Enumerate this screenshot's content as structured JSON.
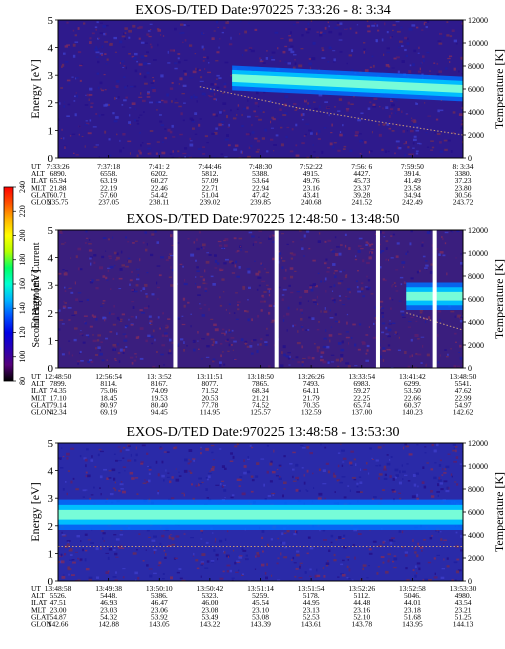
{
  "colors": {
    "background": "#ffffff",
    "frame": "#000000",
    "gap": "#ffffff",
    "profile_line": "#c89a78"
  },
  "colorbar": {
    "label": "Second Harmonic Current",
    "ticks": [
      "80",
      "100",
      "120",
      "140",
      "160",
      "180",
      "200",
      "220",
      "240"
    ],
    "range": [
      80,
      240
    ],
    "colors": [
      "#000000",
      "#55007a",
      "#2a00b4",
      "#0000e6",
      "#0050ff",
      "#00b4ff",
      "#00ffd2",
      "#00ff64",
      "#b4ff00",
      "#ffff00",
      "#ffb400",
      "#ff5000",
      "#ff0000"
    ]
  },
  "chart_data": [
    {
      "type": "heatmap",
      "title": "EXOS-D/TED   Date:970225   7:33:26 - 8: 3:34",
      "ylabel": "Energy [eV]",
      "ylabel_right": "Temperature [K]",
      "ylim": [
        0,
        5
      ],
      "ylim_right": [
        0,
        12000
      ],
      "yticks": [
        "0",
        "1",
        "2",
        "3",
        "4",
        "5"
      ],
      "yticks_right": [
        "0",
        "2000",
        "4000",
        "6000",
        "8000",
        "10000",
        "12000"
      ],
      "background_color": "#2e1a8c",
      "band": {
        "x_start": 0.43,
        "x_end": 1.0,
        "center_ev": [
          2.9,
          2.5
        ],
        "halfwidth_ev": 0.45,
        "peak_color": "#7dffd6",
        "mid_color": "#00c8ff",
        "edge_color": "#0070ff"
      },
      "profile": {
        "x": [
          0.35,
          0.6,
          0.8,
          1.0
        ],
        "t_k": [
          6200,
          4300,
          3100,
          2000
        ]
      },
      "gaps": [],
      "tick_labels": {
        "row_names": [
          "UT",
          "ALT",
          "ILAT",
          "MLT",
          "GLAT",
          "GLON"
        ],
        "columns": [
          [
            "7:33:26",
            "6890.",
            "65.94",
            "21.88",
            "60.71",
            "235.75"
          ],
          [
            "7:37:18",
            "6558.",
            "63.19",
            "22.19",
            "57.60",
            "237.05"
          ],
          [
            "7:41: 2",
            "6202.",
            "60.27",
            "22.46",
            "54.42",
            "238.11"
          ],
          [
            "7:44:46",
            "5812.",
            "57.09",
            "22.71",
            "51.04",
            "239.02"
          ],
          [
            "7:48:30",
            "5388.",
            "53.64",
            "22.94",
            "47.42",
            "239.85"
          ],
          [
            "7:52:22",
            "4915.",
            "49.76",
            "23.16",
            "43.41",
            "240.68"
          ],
          [
            "7:56: 6",
            "4427.",
            "45.73",
            "23.37",
            "39.28",
            "241.52"
          ],
          [
            "7:59:50",
            "3914.",
            "41.49",
            "23.58",
            "34.94",
            "242.49"
          ],
          [
            "8: 3:34",
            "3380.",
            "37.23",
            "23.80",
            "30.56",
            "243.72"
          ]
        ]
      }
    },
    {
      "type": "heatmap",
      "title": "EXOS-D/TED   Date:970225   12:48:50 - 13:48:50",
      "ylabel": "Energy [eV]",
      "ylabel_right": "Temperature [K]",
      "ylim": [
        0,
        5
      ],
      "ylim_right": [
        0,
        12000
      ],
      "yticks": [
        "0",
        "1",
        "2",
        "3",
        "4",
        "5"
      ],
      "yticks_right": [
        "0",
        "2000",
        "4000",
        "6000",
        "8000",
        "10000",
        "12000"
      ],
      "background_color": "#3a1e7e",
      "band": {
        "x_start": 0.86,
        "x_end": 1.0,
        "center_ev": [
          2.6,
          2.6
        ],
        "halfwidth_ev": 0.5,
        "peak_color": "#7dffd6",
        "mid_color": "#00c8ff",
        "edge_color": "#0070ff"
      },
      "profile": {
        "x": [
          0.86,
          1.0
        ],
        "t_k": [
          4800,
          3300
        ]
      },
      "gaps": [
        [
          0.285,
          0.295
        ],
        [
          0.535,
          0.545
        ],
        [
          0.785,
          0.795
        ],
        [
          0.925,
          0.935
        ]
      ],
      "tick_labels": {
        "row_names": [
          "UT",
          "ALT",
          "ILAT",
          "MLT",
          "GLAT",
          "GLON"
        ],
        "columns": [
          [
            "12:48:50",
            "7899.",
            "74.35",
            "17.10",
            "79.14",
            "42.34"
          ],
          [
            "12:56:54",
            "8114.",
            "75.06",
            "18.45",
            "80.97",
            "69.19"
          ],
          [
            "13: 3:52",
            "8167.",
            "74.09",
            "19.53",
            "80.40",
            "94.45"
          ],
          [
            "13:11:51",
            "8077.",
            "71.52",
            "20.53",
            "77.78",
            "114.95"
          ],
          [
            "13:18:50",
            "7865.",
            "68.34",
            "21.21",
            "74.52",
            "125.57"
          ],
          [
            "13:26:26",
            "7493.",
            "64.11",
            "21.79",
            "70.35",
            "132.59"
          ],
          [
            "13:33:54",
            "6983.",
            "59.27",
            "22.25",
            "65.74",
            "137.00"
          ],
          [
            "13:41:42",
            "6299.",
            "53.50",
            "22.66",
            "60.37",
            "140.23"
          ],
          [
            "13:48:50",
            "5541.",
            "47.62",
            "22.99",
            "54.97",
            "142.62"
          ]
        ]
      }
    },
    {
      "type": "heatmap",
      "title": "EXOS-D/TED   Date:970225   13:48:58 - 13:53:30",
      "ylabel": "Energy [eV]",
      "ylabel_right": "Temperature [K]",
      "ylim": [
        0,
        5
      ],
      "ylim_right": [
        0,
        12000
      ],
      "yticks": [
        "0",
        "1",
        "2",
        "3",
        "4",
        "5"
      ],
      "yticks_right": [
        "0",
        "2000",
        "4000",
        "6000",
        "8000",
        "10000",
        "12000"
      ],
      "background_color": "#2a2aa8",
      "band": {
        "x_start": 0.0,
        "x_end": 1.0,
        "center_ev": [
          2.4,
          2.4
        ],
        "halfwidth_ev": 0.55,
        "peak_color": "#7dffd6",
        "mid_color": "#00c8ff",
        "edge_color": "#0070ff"
      },
      "profile": {
        "x": [
          0.0,
          1.0
        ],
        "t_k": [
          3000,
          3000
        ]
      },
      "gaps": [],
      "tick_labels": {
        "row_names": [
          "UT",
          "ALT",
          "ILAT",
          "MLT",
          "GLAT",
          "GLON"
        ],
        "columns": [
          [
            "13:48:58",
            "5526.",
            "47.51",
            "23.00",
            "54.87",
            "142.66"
          ],
          [
            "13:49:38",
            "5448.",
            "46.93",
            "23.03",
            "54.32",
            "142.88"
          ],
          [
            "13:50:10",
            "5386.",
            "46.47",
            "23.06",
            "53.92",
            "143.05"
          ],
          [
            "13:50:42",
            "5323.",
            "46.00",
            "23.08",
            "53.49",
            "143.22"
          ],
          [
            "13:51:14",
            "5259.",
            "45.54",
            "23.10",
            "53.08",
            "143.39"
          ],
          [
            "13:51:54",
            "5178.",
            "44.95",
            "23.13",
            "52.53",
            "143.61"
          ],
          [
            "13:52:26",
            "5112.",
            "44.48",
            "23.16",
            "52.10",
            "143.78"
          ],
          [
            "13:52:58",
            "5046.",
            "44.01",
            "23.18",
            "51.68",
            "143.95"
          ],
          [
            "13:53:30",
            "4980.",
            "43.54",
            "23.21",
            "51.25",
            "144.13"
          ]
        ]
      }
    }
  ]
}
